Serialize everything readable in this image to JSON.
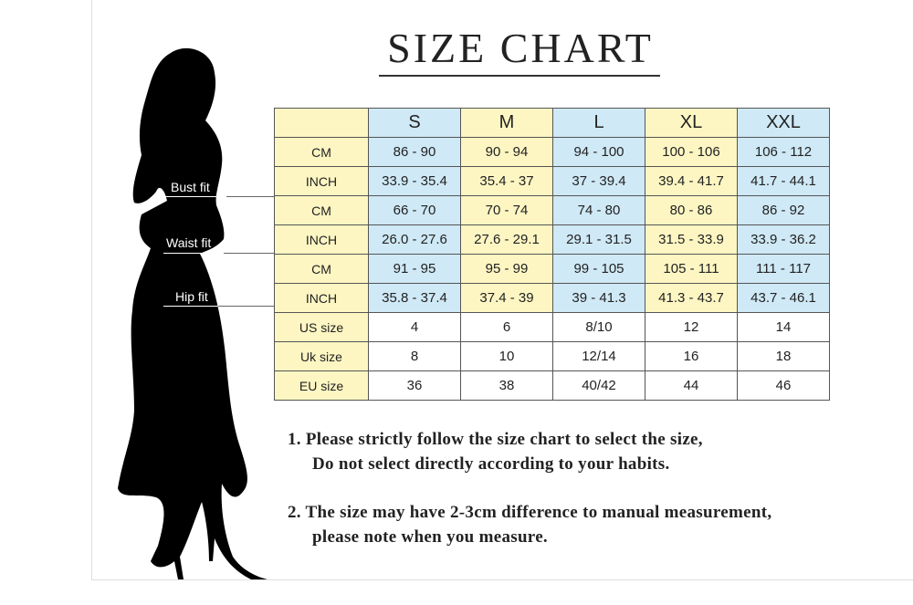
{
  "title": "SIZE CHART",
  "fit_labels": {
    "bust": "Bust fit",
    "waist": "Waist fit",
    "hip": "Hip fit"
  },
  "colors": {
    "yellow": "#fdf6c3",
    "blue": "#cfe9f6"
  },
  "table": {
    "headers": [
      "",
      "S",
      "M",
      "L",
      "XL",
      "XXL"
    ],
    "rows": [
      {
        "label": "CM",
        "values": [
          "86 - 90",
          "90 - 94",
          "94 - 100",
          "100 - 106",
          "106 - 112"
        ]
      },
      {
        "label": "INCH",
        "values": [
          "33.9 - 35.4",
          "35.4 - 37",
          "37 - 39.4",
          "39.4 - 41.7",
          "41.7 - 44.1"
        ]
      },
      {
        "label": "CM",
        "values": [
          "66 - 70",
          "70 - 74",
          "74 - 80",
          "80 - 86",
          "86 - 92"
        ]
      },
      {
        "label": "INCH",
        "values": [
          "26.0 - 27.6",
          "27.6 - 29.1",
          "29.1 - 31.5",
          "31.5 - 33.9",
          "33.9 - 36.2"
        ]
      },
      {
        "label": "CM",
        "values": [
          "91 - 95",
          "95 - 99",
          "99 - 105",
          "105 - 111",
          "111 - 117"
        ]
      },
      {
        "label": "INCH",
        "values": [
          "35.8 - 37.4",
          "37.4 - 39",
          "39 - 41.3",
          "41.3 - 43.7",
          "43.7 - 46.1"
        ]
      },
      {
        "label": "US size",
        "values": [
          "4",
          "6",
          "8/10",
          "12",
          "14"
        ]
      },
      {
        "label": "Uk size",
        "values": [
          "8",
          "10",
          "12/14",
          "16",
          "18"
        ]
      },
      {
        "label": "EU size",
        "values": [
          "36",
          "38",
          "40/42",
          "44",
          "46"
        ]
      }
    ]
  },
  "notes": [
    {
      "line1": "1.  Please strictly follow the size chart to select the size,",
      "line2": "Do not select directly according to your habits."
    },
    {
      "line1": "2.  The size may have 2-3cm difference  to manual measurement,",
      "line2": "please note when you measure."
    }
  ]
}
